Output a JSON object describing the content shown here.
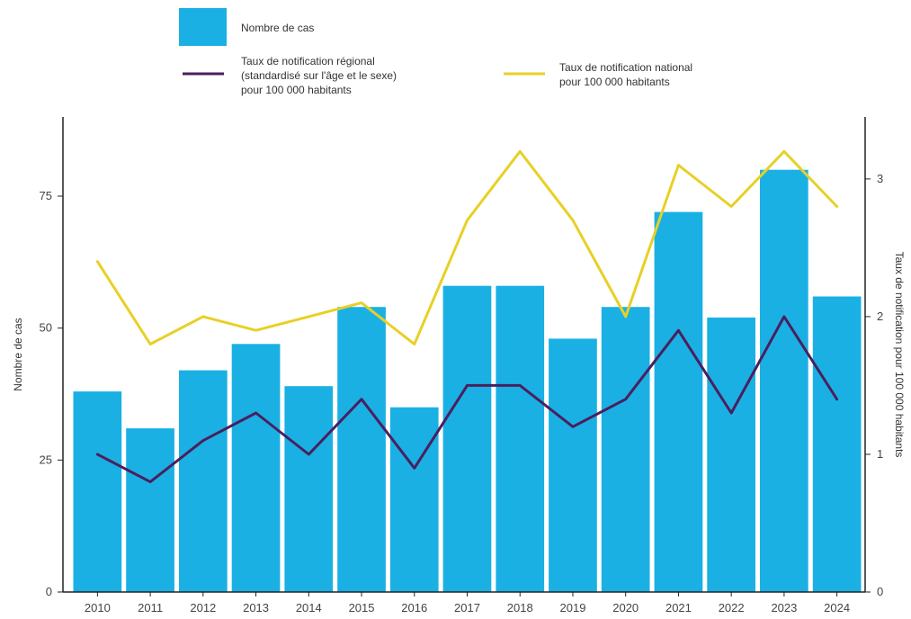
{
  "chart_data": {
    "type": "bar",
    "categories": [
      "2010",
      "2011",
      "2012",
      "2013",
      "2014",
      "2015",
      "2016",
      "2017",
      "2018",
      "2019",
      "2020",
      "2021",
      "2022",
      "2023",
      "2024"
    ],
    "bars": {
      "name": "Nombre de cas",
      "values": [
        38,
        31,
        42,
        47,
        39,
        54,
        35,
        58,
        58,
        48,
        54,
        72,
        52,
        80,
        56
      ],
      "color": "#1ab0e4"
    },
    "lines": [
      {
        "name_lines": [
          "Taux de notification régional",
          "(standardisé sur l'âge et le sexe)",
          "pour 100 000 habitants"
        ],
        "values": [
          1.0,
          0.8,
          1.1,
          1.3,
          1.0,
          1.4,
          0.9,
          1.5,
          1.5,
          1.2,
          1.4,
          1.9,
          1.3,
          2.0,
          1.4
        ],
        "color": "#4a1f5e"
      },
      {
        "name_lines": [
          "Taux de notification national",
          "pour 100 000 habitants"
        ],
        "values": [
          2.4,
          1.8,
          2.0,
          1.9,
          2.0,
          2.1,
          1.8,
          2.7,
          3.2,
          2.7,
          2.0,
          3.1,
          2.8,
          3.2,
          2.8
        ],
        "color": "#e8d026"
      }
    ],
    "ylabel_left": "Nombre de cas",
    "ylabel_right": "Taux de notification pour 100 000 habitants",
    "ylim_left": [
      0,
      90
    ],
    "yticks_left": [
      0,
      25,
      50,
      75
    ],
    "ylim_right": [
      0,
      3.45
    ],
    "yticks_right": [
      0,
      1,
      2,
      3
    ],
    "grid": false,
    "legend_position": "top"
  }
}
